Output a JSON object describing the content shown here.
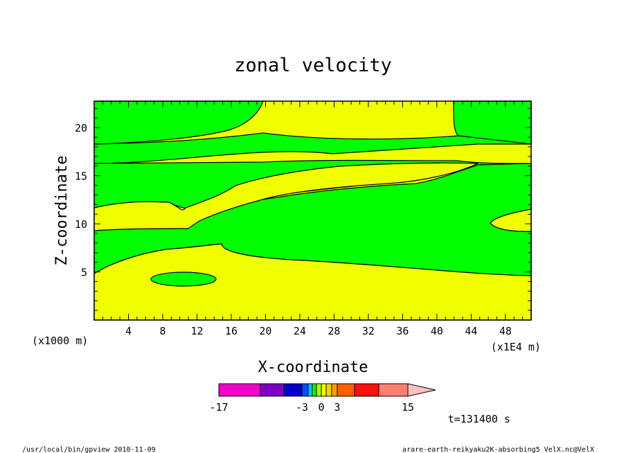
{
  "chart_data": {
    "type": "contour",
    "title": "zonal velocity",
    "xlabel": "X-coordinate",
    "ylabel": "Z-coordinate",
    "x_unit_note": "(x1E4 m)",
    "y_unit_note": "(x1000 m)",
    "xlim": [
      0,
      51
    ],
    "ylim": [
      0,
      22.75
    ],
    "x_ticks": [
      "4",
      "8",
      "12",
      "16",
      "20",
      "24",
      "28",
      "32",
      "36",
      "40",
      "44",
      "48"
    ],
    "y_ticks": [
      "5",
      "10",
      "15",
      "20"
    ],
    "regions": [
      {
        "color": "#f0ff00",
        "level": "0 to 3"
      },
      {
        "color": "#00ff00",
        "level": "-1 to 0"
      }
    ],
    "colorbar": {
      "tick_labels": [
        "-17",
        "-3",
        "0",
        "3",
        "15"
      ],
      "colors": [
        "#f000c8",
        "#8000c0",
        "#0000c8",
        "#0050ff",
        "#00c8ff",
        "#00ff00",
        "#b0ff00",
        "#f0ff00",
        "#ffd000",
        "#ffa000",
        "#ff6000",
        "#ff1010",
        "#ff8070",
        "#ffc0c0"
      ]
    },
    "time_label": "t=131400 s"
  },
  "footer": {
    "left": "/usr/local/bin/gpview  2010-11-09",
    "right": "arare-earth-reikyaku2K-absorbing5_VelX.nc@VelX"
  }
}
